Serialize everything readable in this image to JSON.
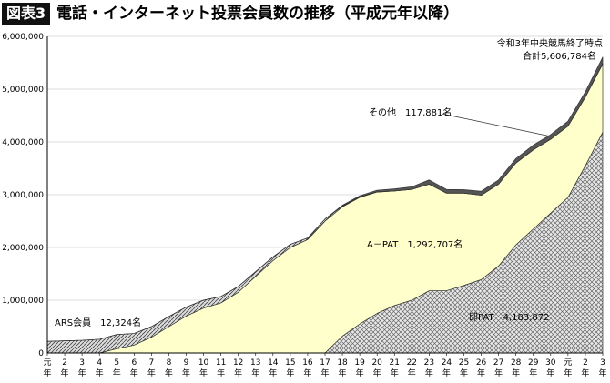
{
  "title_badge": "図表3",
  "title_text": "電話・インターネット投票会員数の推移（平成元年以降）",
  "chart_data": {
    "type": "area",
    "stacked": true,
    "x_unit": "年",
    "categories": [
      "元",
      "2",
      "3",
      "4",
      "5",
      "6",
      "7",
      "8",
      "9",
      "10",
      "11",
      "12",
      "13",
      "14",
      "15",
      "16",
      "17",
      "18",
      "19",
      "20",
      "21",
      "22",
      "23",
      "24",
      "25",
      "26",
      "27",
      "28",
      "29",
      "30",
      "元",
      "2",
      "3"
    ],
    "yticks": [
      "0",
      "1,000,000",
      "2,000,000",
      "3,000,000",
      "4,000,000",
      "5,000,000",
      "6,000,000"
    ],
    "ylim": [
      0,
      6000000
    ],
    "grid": "horizontal",
    "series": [
      {
        "name": "即PAT",
        "fill": "crosshatch",
        "values": [
          0,
          0,
          0,
          0,
          0,
          0,
          0,
          0,
          0,
          0,
          0,
          0,
          0,
          0,
          0,
          0,
          0,
          320000,
          550000,
          750000,
          900000,
          1000000,
          1180000,
          1180000,
          1280000,
          1390000,
          1650000,
          2050000,
          2350000,
          2650000,
          2950000,
          3550000,
          4183872
        ]
      },
      {
        "name": "A－PAT",
        "fill": "#ffffcc",
        "values": [
          0,
          0,
          0,
          0,
          80000,
          150000,
          300000,
          500000,
          700000,
          850000,
          950000,
          1150000,
          1450000,
          1750000,
          2000000,
          2150000,
          2500000,
          2450000,
          2400000,
          2300000,
          2170000,
          2100000,
          2020000,
          1850000,
          1750000,
          1600000,
          1550000,
          1550000,
          1500000,
          1400000,
          1350000,
          1300000,
          1292707
        ]
      },
      {
        "name": "ARS会員",
        "fill": "diagonal",
        "values": [
          220000,
          230000,
          240000,
          260000,
          270000,
          220000,
          200000,
          190000,
          170000,
          150000,
          120000,
          110000,
          90000,
          70000,
          60000,
          30000,
          40000,
          15000,
          10000,
          5000,
          0,
          0,
          0,
          0,
          0,
          0,
          0,
          0,
          0,
          0,
          0,
          0,
          12324
        ]
      },
      {
        "name": "その他",
        "fill": "dark",
        "values": [
          0,
          0,
          0,
          0,
          0,
          0,
          0,
          0,
          0,
          0,
          0,
          0,
          0,
          0,
          0,
          0,
          0,
          15000,
          20000,
          30000,
          40000,
          50000,
          80000,
          70000,
          65000,
          75000,
          80000,
          85000,
          90000,
          90000,
          95000,
          100000,
          117881
        ]
      }
    ],
    "annotations": {
      "final_line1": "令和3年中央競馬終了時点",
      "final_line2": "合計5,606,784名",
      "sonota": "その他　117,881名",
      "apat": "A－PAT　1,292,707名",
      "ars": "ARS会員　12,324名",
      "sokupat": "即PAT　4,183,872"
    }
  }
}
